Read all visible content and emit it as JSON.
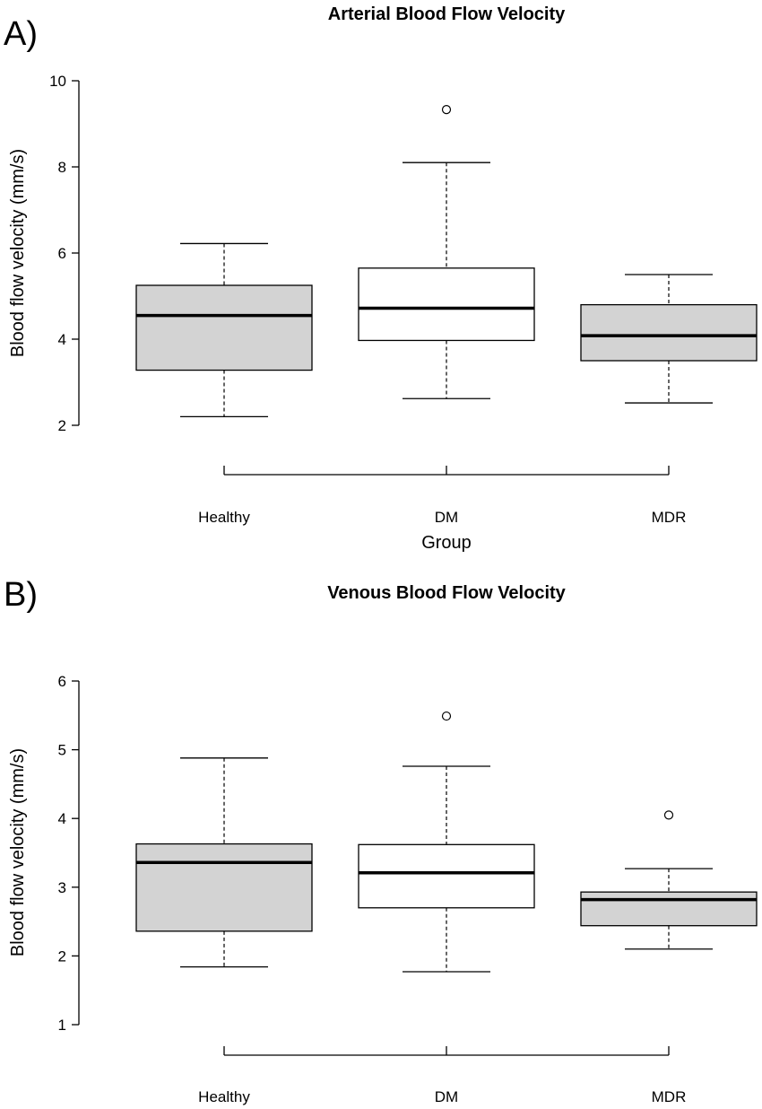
{
  "panels": [
    {
      "letter": "A)"
    },
    {
      "letter": "B)"
    }
  ],
  "chart_data": [
    {
      "type": "box",
      "title": "Arterial Blood Flow Velocity",
      "xlabel": "Group",
      "ylabel": "Blood flow velocity (mm/s)",
      "categories": [
        "Healthy",
        "DM",
        "MDR"
      ],
      "fills": [
        "#d3d3d3",
        "#ffffff",
        "#d3d3d3"
      ],
      "boxes": [
        {
          "lower_whisker": 2.2,
          "q1": 3.28,
          "median": 4.55,
          "q3": 5.25,
          "upper_whisker": 6.22,
          "outliers": []
        },
        {
          "lower_whisker": 2.62,
          "q1": 3.97,
          "median": 4.72,
          "q3": 5.65,
          "upper_whisker": 8.1,
          "outliers": [
            9.33
          ]
        },
        {
          "lower_whisker": 2.52,
          "q1": 3.5,
          "median": 4.08,
          "q3": 4.8,
          "upper_whisker": 5.5,
          "outliers": []
        }
      ],
      "ylim": [
        2,
        10
      ],
      "yticks": [
        2,
        4,
        6,
        8,
        10
      ]
    },
    {
      "type": "box",
      "title": "Venous Blood Flow Velocity",
      "xlabel": "",
      "ylabel": "Blood flow velocity (mm/s)",
      "categories": [
        "Healthy",
        "DM",
        "MDR"
      ],
      "fills": [
        "#d3d3d3",
        "#ffffff",
        "#d3d3d3"
      ],
      "boxes": [
        {
          "lower_whisker": 1.84,
          "q1": 2.36,
          "median": 3.36,
          "q3": 3.63,
          "upper_whisker": 4.88,
          "outliers": []
        },
        {
          "lower_whisker": 1.77,
          "q1": 2.7,
          "median": 3.21,
          "q3": 3.62,
          "upper_whisker": 4.76,
          "outliers": [
            5.49
          ]
        },
        {
          "lower_whisker": 2.1,
          "q1": 2.44,
          "median": 2.82,
          "q3": 2.93,
          "upper_whisker": 3.27,
          "outliers": [
            4.05
          ]
        }
      ],
      "ylim": [
        1,
        6
      ],
      "yticks": [
        1,
        2,
        3,
        4,
        5,
        6
      ]
    }
  ]
}
